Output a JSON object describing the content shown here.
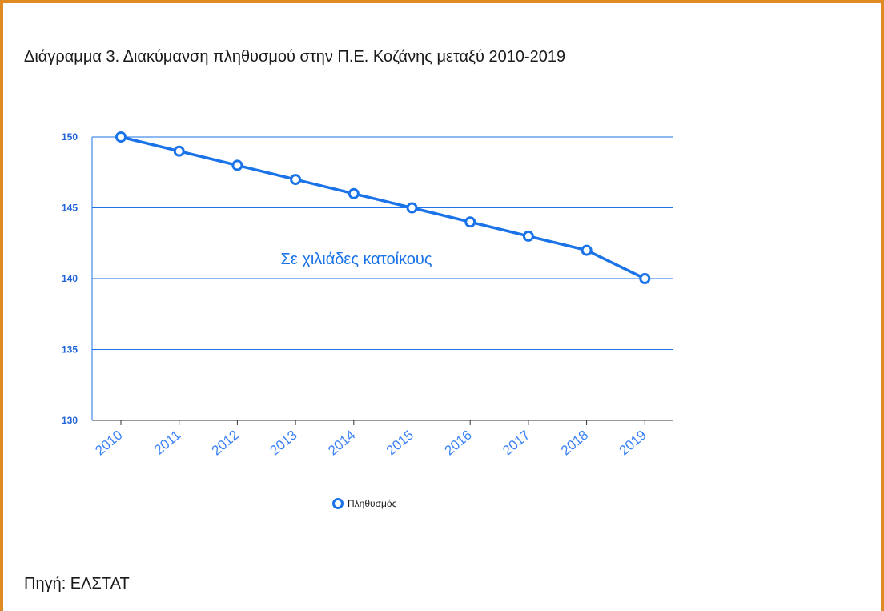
{
  "caption": "Διάγραμμα 3. Διακύμανση πληθυσμού στην Π.Ε. Κοζάνης μεταξύ 2010-2019",
  "source": "Πηγή: ΕΛΣΤΑΤ",
  "colors": {
    "frame": "#e08a24",
    "line": "#1a73e8",
    "grid": "#1a73e8",
    "tick_text": "#1f63d8",
    "x_label_text": "#3b82f6"
  },
  "chart_data": {
    "type": "line",
    "categories": [
      "2010",
      "2011",
      "2012",
      "2013",
      "2014",
      "2015",
      "2016",
      "2017",
      "2018",
      "2019"
    ],
    "series": [
      {
        "name": "Πληθυσμός",
        "values": [
          150,
          149,
          148,
          147,
          146,
          145,
          144,
          143,
          142,
          140
        ]
      }
    ],
    "ylim": [
      130,
      150
    ],
    "yticks": [
      150,
      145,
      140,
      135,
      130
    ],
    "annotation": "Σε χιλιάδες κατοίκους",
    "legend_position": "bottom",
    "grid": true,
    "marker": "hollow-circle"
  }
}
